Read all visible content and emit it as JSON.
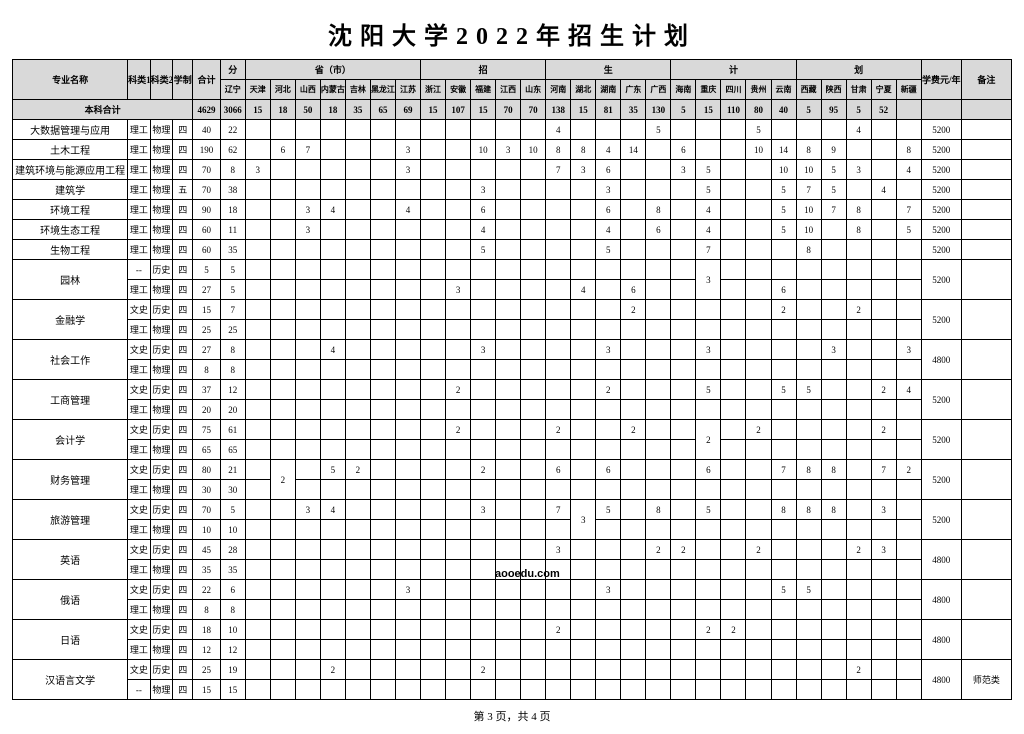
{
  "title": "沈阳大学2022年招生计划",
  "headers": {
    "major": "专业名称",
    "cat1": "科类1",
    "cat2": "科类2",
    "xz": "学制",
    "hj": "合计",
    "span_fen": "分",
    "span_sheng": "省（市）",
    "span_zhao": "招",
    "span_sheng2": "生",
    "span_ji": "计",
    "span_hua": "划",
    "fee": "学费元/年",
    "bz": "备注",
    "provinces": [
      "辽宁",
      "天津",
      "河北",
      "山西",
      "内蒙古",
      "吉林",
      "黑龙江",
      "江苏",
      "浙江",
      "安徽",
      "福建",
      "江西",
      "山东",
      "河南",
      "湖北",
      "湖南",
      "广东",
      "广西",
      "海南",
      "重庆",
      "四川",
      "贵州",
      "云南",
      "西藏",
      "陕西",
      "甘肃",
      "宁夏",
      "新疆"
    ]
  },
  "totalRow": {
    "name": "本科合计",
    "hj": "4629",
    "vals": [
      "3066",
      "15",
      "18",
      "50",
      "18",
      "35",
      "65",
      "69",
      "15",
      "107",
      "15",
      "70",
      "70",
      "138",
      "15",
      "81",
      "35",
      "130",
      "5",
      "15",
      "110",
      "80",
      "40",
      "5",
      "95",
      "5",
      "52",
      ""
    ]
  },
  "rows": [
    {
      "group": 0,
      "name": "大数据管理与应用",
      "cat1": "理工",
      "cat2": "物理",
      "xz": "四",
      "hj": "40",
      "v": [
        "22",
        "",
        "",
        "",
        "",
        "",
        "",
        "",
        "",
        "",
        "",
        "",
        "",
        "4",
        "",
        "",
        "",
        "5",
        "",
        "",
        "",
        "5",
        "",
        "",
        "",
        "4",
        "",
        ""
      ],
      "fee": "5200",
      "bz": ""
    },
    {
      "group": 0,
      "name": "土木工程",
      "cat1": "理工",
      "cat2": "物理",
      "xz": "四",
      "hj": "190",
      "v": [
        "62",
        "",
        "6",
        "7",
        "",
        "",
        "",
        "3",
        "",
        "",
        "10",
        "3",
        "10",
        "8",
        "8",
        "4",
        "14",
        "",
        "6",
        "",
        "",
        "10",
        "14",
        "8",
        "9",
        "",
        "",
        "8"
      ],
      "fee": "5200",
      "bz": ""
    },
    {
      "group": 0,
      "name": "建筑环境与能源应用工程",
      "cat1": "理工",
      "cat2": "物理",
      "xz": "四",
      "hj": "70",
      "v": [
        "8",
        "3",
        "",
        "",
        "",
        "",
        "",
        "3",
        "",
        "",
        "",
        "",
        "",
        "7",
        "3",
        "6",
        "",
        "",
        "3",
        "5",
        "",
        "",
        "10",
        "10",
        "5",
        "3",
        "",
        "4"
      ],
      "fee": "5200",
      "bz": ""
    },
    {
      "group": 0,
      "name": "建筑学",
      "cat1": "理工",
      "cat2": "物理",
      "xz": "五",
      "hj": "70",
      "v": [
        "38",
        "",
        "",
        "",
        "",
        "",
        "",
        "",
        "",
        "",
        "3",
        "",
        "",
        "",
        "",
        "3",
        "",
        "",
        "",
        "5",
        "",
        "",
        "5",
        "7",
        "5",
        "",
        "4",
        ""
      ],
      "fee": "5200",
      "bz": ""
    },
    {
      "group": 0,
      "name": "环境工程",
      "cat1": "理工",
      "cat2": "物理",
      "xz": "四",
      "hj": "90",
      "v": [
        "18",
        "",
        "",
        "3",
        "4",
        "",
        "",
        "4",
        "",
        "",
        "6",
        "",
        "",
        "",
        "",
        "6",
        "",
        "8",
        "",
        "4",
        "",
        "",
        "5",
        "10",
        "7",
        "8",
        "",
        "7"
      ],
      "fee": "5200",
      "bz": ""
    },
    {
      "group": 0,
      "name": "环境生态工程",
      "cat1": "理工",
      "cat2": "物理",
      "xz": "四",
      "hj": "60",
      "v": [
        "11",
        "",
        "",
        "3",
        "",
        "",
        "",
        "",
        "",
        "",
        "4",
        "",
        "",
        "",
        "",
        "4",
        "",
        "6",
        "",
        "4",
        "",
        "",
        "5",
        "10",
        "",
        "8",
        "",
        "5"
      ],
      "fee": "5200",
      "bz": ""
    },
    {
      "group": 0,
      "name": "生物工程",
      "cat1": "理工",
      "cat2": "物理",
      "xz": "四",
      "hj": "60",
      "v": [
        "35",
        "",
        "",
        "",
        "",
        "",
        "",
        "",
        "",
        "",
        "5",
        "",
        "",
        "",
        "",
        "5",
        "",
        "",
        "",
        "7",
        "",
        "",
        "",
        "8",
        "",
        "",
        "",
        ""
      ],
      "fee": "5200",
      "bz": ""
    },
    {
      "group": 1,
      "name": "园林",
      "cat1": "--",
      "cat2": "历史",
      "xz": "四",
      "hj": "5",
      "v": [
        "5",
        "",
        "",
        "",
        "",
        "",
        "",
        "",
        "",
        "",
        "",
        "",
        "",
        "",
        "",
        "",
        "",
        "",
        "",
        "",
        "",
        "",
        "",
        "",
        "",
        "",
        "",
        ""
      ],
      "fee": "5200",
      "bz": "",
      "rowspan": 2,
      "mergeCol": 19,
      "mergeVal": "3"
    },
    {
      "group": 1,
      "cat1": "理工",
      "cat2": "物理",
      "xz": "四",
      "hj": "27",
      "v": [
        "5",
        "",
        "",
        "",
        "",
        "",
        "",
        "",
        "",
        "3",
        "",
        "",
        "",
        "",
        "4",
        "",
        "6",
        "",
        "",
        "",
        "",
        "",
        "6",
        "",
        "",
        "",
        "",
        ""
      ]
    },
    {
      "group": 2,
      "name": "金融学",
      "cat1": "文史",
      "cat2": "历史",
      "xz": "四",
      "hj": "15",
      "v": [
        "7",
        "",
        "",
        "",
        "",
        "",
        "",
        "",
        "",
        "",
        "",
        "",
        "",
        "",
        "",
        "",
        "2",
        "",
        "",
        "",
        "",
        "",
        "2",
        "",
        "",
        "2",
        "",
        ""
      ],
      "fee": "5200",
      "bz": "",
      "rowspan": 2
    },
    {
      "group": 2,
      "cat1": "理工",
      "cat2": "物理",
      "xz": "四",
      "hj": "25",
      "v": [
        "25",
        "",
        "",
        "",
        "",
        "",
        "",
        "",
        "",
        "",
        "",
        "",
        "",
        "",
        "",
        "",
        "",
        "",
        "",
        "",
        "",
        "",
        "",
        "",
        "",
        "",
        "",
        ""
      ]
    },
    {
      "group": 3,
      "name": "社会工作",
      "cat1": "文史",
      "cat2": "历史",
      "xz": "四",
      "hj": "27",
      "v": [
        "8",
        "",
        "",
        "",
        "4",
        "",
        "",
        "",
        "",
        "",
        "3",
        "",
        "",
        "",
        "",
        "3",
        "",
        "",
        "",
        "3",
        "",
        "",
        "",
        "",
        "3",
        "",
        "",
        "3"
      ],
      "fee": "4800",
      "bz": "",
      "rowspan": 2
    },
    {
      "group": 3,
      "cat1": "理工",
      "cat2": "物理",
      "xz": "四",
      "hj": "8",
      "v": [
        "8",
        "",
        "",
        "",
        "",
        "",
        "",
        "",
        "",
        "",
        "",
        "",
        "",
        "",
        "",
        "",
        "",
        "",
        "",
        "",
        "",
        "",
        "",
        "",
        "",
        "",
        "",
        ""
      ]
    },
    {
      "group": 4,
      "name": "工商管理",
      "cat1": "文史",
      "cat2": "历史",
      "xz": "四",
      "hj": "37",
      "v": [
        "12",
        "",
        "",
        "",
        "",
        "",
        "",
        "",
        "",
        "2",
        "",
        "",
        "",
        "",
        "",
        "2",
        "",
        "",
        "",
        "5",
        "",
        "",
        "5",
        "5",
        "",
        "",
        "2",
        "4"
      ],
      "fee": "5200",
      "bz": "",
      "rowspan": 2
    },
    {
      "group": 4,
      "cat1": "理工",
      "cat2": "物理",
      "xz": "四",
      "hj": "20",
      "v": [
        "20",
        "",
        "",
        "",
        "",
        "",
        "",
        "",
        "",
        "",
        "",
        "",
        "",
        "",
        "",
        "",
        "",
        "",
        "",
        "",
        "",
        "",
        "",
        "",
        "",
        "",
        "",
        ""
      ]
    },
    {
      "group": 5,
      "name": "会计学",
      "cat1": "文史",
      "cat2": "历史",
      "xz": "四",
      "hj": "75",
      "v": [
        "61",
        "",
        "",
        "",
        "",
        "",
        "",
        "",
        "",
        "2",
        "",
        "",
        "",
        "2",
        "",
        "",
        "2",
        "",
        "",
        "",
        "",
        "2",
        "",
        "",
        "",
        "",
        "2",
        ""
      ],
      "fee": "5200",
      "bz": "",
      "rowspan": 2,
      "mergeCol": 19,
      "mergeVal": "2"
    },
    {
      "group": 5,
      "cat1": "理工",
      "cat2": "物理",
      "xz": "四",
      "hj": "65",
      "v": [
        "65",
        "",
        "",
        "",
        "",
        "",
        "",
        "",
        "",
        "",
        "",
        "",
        "",
        "",
        "",
        "",
        "",
        "",
        "",
        "",
        "",
        "",
        "",
        "",
        "",
        "",
        "",
        ""
      ]
    },
    {
      "group": 6,
      "name": "财务管理",
      "cat1": "文史",
      "cat2": "历史",
      "xz": "四",
      "hj": "80",
      "v": [
        "21",
        "",
        "",
        "",
        "5",
        "2",
        "",
        "",
        "",
        "",
        "2",
        "",
        "",
        "6",
        "",
        "6",
        "",
        "",
        "",
        "6",
        "",
        "",
        "7",
        "8",
        "8",
        "",
        "7",
        "2"
      ],
      "fee": "5200",
      "bz": "",
      "rowspan": 2,
      "mergeLeft": 2,
      "mergeLeftVal": "2"
    },
    {
      "group": 6,
      "cat1": "理工",
      "cat2": "物理",
      "xz": "四",
      "hj": "30",
      "v": [
        "30",
        "",
        "",
        "",
        "",
        "",
        "",
        "",
        "",
        "",
        "",
        "",
        "",
        "",
        "",
        "",
        "",
        "",
        "",
        "",
        "",
        "",
        "",
        "",
        "",
        "",
        "",
        ""
      ]
    },
    {
      "group": 7,
      "name": "旅游管理",
      "cat1": "文史",
      "cat2": "历史",
      "xz": "四",
      "hj": "70",
      "v": [
        "5",
        "",
        "",
        "3",
        "4",
        "",
        "",
        "",
        "",
        "",
        "3",
        "",
        "",
        "7",
        "",
        "5",
        "",
        "8",
        "",
        "5",
        "",
        "",
        "8",
        "8",
        "8",
        "",
        "3",
        ""
      ],
      "fee": "5200",
      "bz": "",
      "rowspan": 2,
      "mergeCol": 14,
      "mergeVal": "3"
    },
    {
      "group": 7,
      "cat1": "理工",
      "cat2": "物理",
      "xz": "四",
      "hj": "10",
      "v": [
        "10",
        "",
        "",
        "",
        "",
        "",
        "",
        "",
        "",
        "",
        "",
        "",
        "",
        "",
        "",
        "",
        "",
        "",
        "",
        "",
        "",
        "",
        "",
        "",
        "",
        "",
        "",
        ""
      ]
    },
    {
      "group": 8,
      "name": "英语",
      "cat1": "文史",
      "cat2": "历史",
      "xz": "四",
      "hj": "45",
      "v": [
        "28",
        "",
        "",
        "",
        "",
        "",
        "",
        "",
        "",
        "",
        "",
        "",
        "",
        "3",
        "",
        "",
        "",
        "2",
        "2",
        "",
        "",
        "2",
        "",
        "",
        "",
        "2",
        "3",
        ""
      ],
      "fee": "4800",
      "bz": "",
      "rowspan": 2
    },
    {
      "group": 8,
      "cat1": "理工",
      "cat2": "物理",
      "xz": "四",
      "hj": "35",
      "v": [
        "35",
        "",
        "",
        "",
        "",
        "",
        "",
        "",
        "",
        "",
        "",
        "",
        "",
        "",
        "",
        "",
        "",
        "",
        "",
        "",
        "",
        "",
        "",
        "",
        "",
        "",
        "",
        ""
      ]
    },
    {
      "group": 9,
      "name": "俄语",
      "cat1": "文史",
      "cat2": "历史",
      "xz": "四",
      "hj": "22",
      "v": [
        "6",
        "",
        "",
        "",
        "",
        "",
        "",
        "3",
        "",
        "",
        "",
        "",
        "",
        "",
        "",
        "3",
        "",
        "",
        "",
        "",
        "",
        "",
        "5",
        "5",
        "",
        "",
        "",
        ""
      ],
      "fee": "4800",
      "bz": "",
      "rowspan": 2
    },
    {
      "group": 9,
      "cat1": "理工",
      "cat2": "物理",
      "xz": "四",
      "hj": "8",
      "v": [
        "8",
        "",
        "",
        "",
        "",
        "",
        "",
        "",
        "",
        "",
        "",
        "",
        "",
        "",
        "",
        "",
        "",
        "",
        "",
        "",
        "",
        "",
        "",
        "",
        "",
        "",
        "",
        ""
      ]
    },
    {
      "group": 10,
      "name": "日语",
      "cat1": "文史",
      "cat2": "历史",
      "xz": "四",
      "hj": "18",
      "v": [
        "10",
        "",
        "",
        "",
        "",
        "",
        "",
        "",
        "",
        "",
        "",
        "",
        "",
        "2",
        "",
        "",
        "",
        "",
        "",
        "2",
        "2",
        "",
        "",
        "",
        "",
        "",
        "",
        ""
      ],
      "fee": "4800",
      "bz": "",
      "rowspan": 2
    },
    {
      "group": 10,
      "cat1": "理工",
      "cat2": "物理",
      "xz": "四",
      "hj": "12",
      "v": [
        "12",
        "",
        "",
        "",
        "",
        "",
        "",
        "",
        "",
        "",
        "",
        "",
        "",
        "",
        "",
        "",
        "",
        "",
        "",
        "",
        "",
        "",
        "",
        "",
        "",
        "",
        "",
        ""
      ]
    },
    {
      "group": 11,
      "name": "汉语言文学",
      "cat1": "文史",
      "cat2": "历史",
      "xz": "四",
      "hj": "25",
      "v": [
        "19",
        "",
        "",
        "",
        "2",
        "",
        "",
        "",
        "",
        "",
        "2",
        "",
        "",
        "",
        "",
        "",
        "",
        "",
        "",
        "",
        "",
        "",
        "",
        "",
        "",
        "2",
        "",
        ""
      ],
      "fee": "4800",
      "bz": "师范类",
      "rowspan": 2
    },
    {
      "group": 11,
      "cat1": "--",
      "cat2": "物理",
      "xz": "四",
      "hj": "15",
      "v": [
        "15",
        "",
        "",
        "",
        "",
        "",
        "",
        "",
        "",
        "",
        "",
        "",
        "",
        "",
        "",
        "",
        "",
        "",
        "",
        "",
        "",
        "",
        "",
        "",
        "",
        "",
        "",
        ""
      ]
    }
  ],
  "footer": "第 3 页，共 4 页",
  "watermark": "aooedu.com"
}
